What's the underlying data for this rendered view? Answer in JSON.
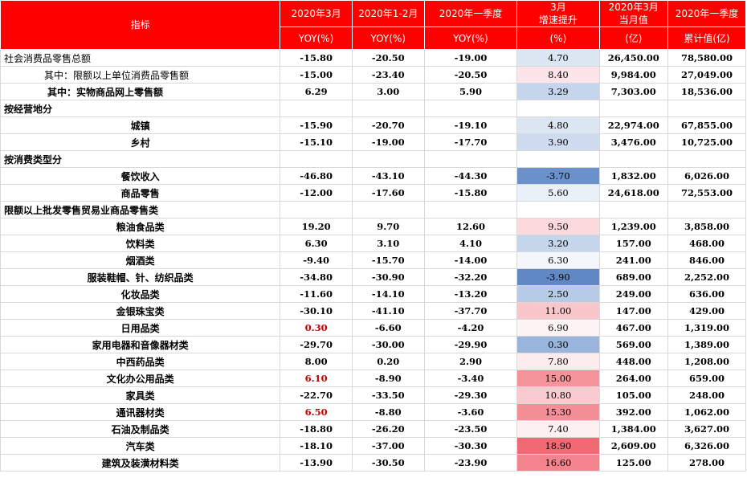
{
  "header": {
    "indicator": "指标",
    "cols": [
      {
        "top": "2020年3月",
        "bottom": "YOY(%)"
      },
      {
        "top": "2020年1-2月",
        "bottom": "YOY(%)"
      },
      {
        "top": "2020年一季度",
        "bottom": "YOY(%)"
      },
      {
        "top": "3月",
        "mid": "增速提升",
        "bottom": "(%)"
      },
      {
        "top": "2020年3月",
        "mid": "当月值",
        "bottom": "(亿)"
      },
      {
        "top": "2020年一季度",
        "bottom": "累计值(亿)"
      }
    ]
  },
  "rows": [
    {
      "name": "社会消费品零售总额",
      "style": "left",
      "mar": "-15.80",
      "jf": "-20.50",
      "q1": "-19.00",
      "inc": "4.70",
      "inc_bg": "#dce6f2",
      "month": "26,450.00",
      "cum": "78,580.00"
    },
    {
      "name": "其中：限额以上单位消费品零售额",
      "style": "indent",
      "mar": "-15.00",
      "jf": "-23.40",
      "q1": "-20.50",
      "inc": "8.40",
      "inc_bg": "#fce4e8",
      "month": "9,984.00",
      "cum": "27,049.00"
    },
    {
      "name": "其中：实物商品网上零售额",
      "style": "indent2",
      "mar": "6.29",
      "jf": "3.00",
      "q1": "5.90",
      "inc": "3.29",
      "inc_bg": "#c5d5ec",
      "month": "7,303.00",
      "cum": "18,536.00"
    },
    {
      "name": "按经营地分",
      "style": "section",
      "mar": "",
      "jf": "",
      "q1": "",
      "inc": "",
      "inc_bg": "#ffffff",
      "month": "",
      "cum": ""
    },
    {
      "name": "城镇",
      "style": "center",
      "mar": "-15.90",
      "jf": "-20.70",
      "q1": "-19.10",
      "inc": "4.80",
      "inc_bg": "#dce6f2",
      "month": "22,974.00",
      "cum": "67,855.00"
    },
    {
      "name": "乡村",
      "style": "center",
      "mar": "-15.10",
      "jf": "-19.00",
      "q1": "-17.70",
      "inc": "3.90",
      "inc_bg": "#cfdcef",
      "month": "3,476.00",
      "cum": "10,725.00"
    },
    {
      "name": "按消费类型分",
      "style": "section",
      "mar": "",
      "jf": "",
      "q1": "",
      "inc": "",
      "inc_bg": "#ffffff",
      "month": "",
      "cum": ""
    },
    {
      "name": "餐饮收入",
      "style": "center",
      "mar": "-46.80",
      "jf": "-43.10",
      "q1": "-44.30",
      "inc": "-3.70",
      "inc_bg": "#6a91c9",
      "month": "1,832.00",
      "cum": "6,026.00"
    },
    {
      "name": "商品零售",
      "style": "center",
      "mar": "-12.00",
      "jf": "-17.60",
      "q1": "-15.80",
      "inc": "5.60",
      "inc_bg": "#eaf0f8",
      "month": "24,618.00",
      "cum": "72,553.00"
    },
    {
      "name": "限额以上批发零售贸易业商品零售类",
      "style": "section",
      "mar": "",
      "jf": "",
      "q1": "",
      "inc": "",
      "inc_bg": "#ffffff",
      "month": "",
      "cum": ""
    },
    {
      "name": "粮油食品类",
      "style": "center",
      "mar": "19.20",
      "jf": "9.70",
      "q1": "12.60",
      "inc": "9.50",
      "inc_bg": "#fbd9dd",
      "month": "1,239.00",
      "cum": "3,858.00"
    },
    {
      "name": "饮料类",
      "style": "center",
      "mar": "6.30",
      "jf": "3.10",
      "q1": "4.10",
      "inc": "3.20",
      "inc_bg": "#c5d5ec",
      "month": "157.00",
      "cum": "468.00"
    },
    {
      "name": "烟酒类",
      "style": "center",
      "mar": "-9.40",
      "jf": "-15.70",
      "q1": "-14.00",
      "inc": "6.30",
      "inc_bg": "#f3f6fb",
      "month": "241.00",
      "cum": "846.00"
    },
    {
      "name": "服装鞋帽、针、纺织品类",
      "style": "center",
      "mar": "-34.80",
      "jf": "-30.90",
      "q1": "-32.20",
      "inc": "-3.90",
      "inc_bg": "#6088c4",
      "month": "689.00",
      "cum": "2,252.00"
    },
    {
      "name": "化妆品类",
      "style": "center",
      "mar": "-11.60",
      "jf": "-14.10",
      "q1": "-13.20",
      "inc": "2.50",
      "inc_bg": "#b8cbe6",
      "month": "249.00",
      "cum": "636.00"
    },
    {
      "name": "金银珠宝类",
      "style": "center",
      "mar": "-30.10",
      "jf": "-41.10",
      "q1": "-37.70",
      "inc": "11.00",
      "inc_bg": "#f9c6cc",
      "month": "147.00",
      "cum": "429.00"
    },
    {
      "name": "日用品类",
      "style": "center",
      "mar": "0.30",
      "mar_red": true,
      "jf": "-6.60",
      "q1": "-4.20",
      "inc": "6.90",
      "inc_bg": "#fdf4f5",
      "month": "467.00",
      "cum": "1,319.00"
    },
    {
      "name": "家用电器和音像器材类",
      "style": "center",
      "mar": "-29.70",
      "jf": "-30.00",
      "q1": "-29.90",
      "inc": "0.30",
      "inc_bg": "#9ab5dc",
      "month": "569.00",
      "cum": "1,389.00"
    },
    {
      "name": "中西药品类",
      "style": "center",
      "mar": "8.00",
      "jf": "0.20",
      "q1": "2.90",
      "inc": "7.80",
      "inc_bg": "#fdecee",
      "month": "448.00",
      "cum": "1,208.00"
    },
    {
      "name": "文化办公用品类",
      "style": "center",
      "mar": "6.10",
      "mar_red": true,
      "jf": "-8.90",
      "q1": "-3.40",
      "inc": "15.00",
      "inc_bg": "#f5939b",
      "month": "264.00",
      "cum": "659.00"
    },
    {
      "name": "家具类",
      "style": "center",
      "mar": "-22.70",
      "jf": "-33.50",
      "q1": "-29.30",
      "inc": "10.80",
      "inc_bg": "#f9cbd0",
      "month": "105.00",
      "cum": "248.00"
    },
    {
      "name": "通讯器材类",
      "style": "center",
      "mar": "6.50",
      "mar_red": true,
      "jf": "-8.80",
      "q1": "-3.60",
      "inc": "15.30",
      "inc_bg": "#f48f97",
      "month": "392.00",
      "cum": "1,062.00"
    },
    {
      "name": "石油及制品类",
      "style": "center",
      "mar": "-18.80",
      "jf": "-26.20",
      "q1": "-23.50",
      "inc": "7.40",
      "inc_bg": "#fdf0f1",
      "month": "1,384.00",
      "cum": "3,627.00"
    },
    {
      "name": "汽车类",
      "style": "center",
      "mar": "-18.10",
      "jf": "-37.00",
      "q1": "-30.30",
      "inc": "18.90",
      "inc_bg": "#f06a74",
      "month": "2,609.00",
      "cum": "6,326.00"
    },
    {
      "name": "建筑及装潢材料类",
      "style": "center",
      "mar": "-13.90",
      "jf": "-30.50",
      "q1": "-23.90",
      "inc": "16.60",
      "inc_bg": "#f3838c",
      "month": "125.00",
      "cum": "278.00"
    }
  ]
}
